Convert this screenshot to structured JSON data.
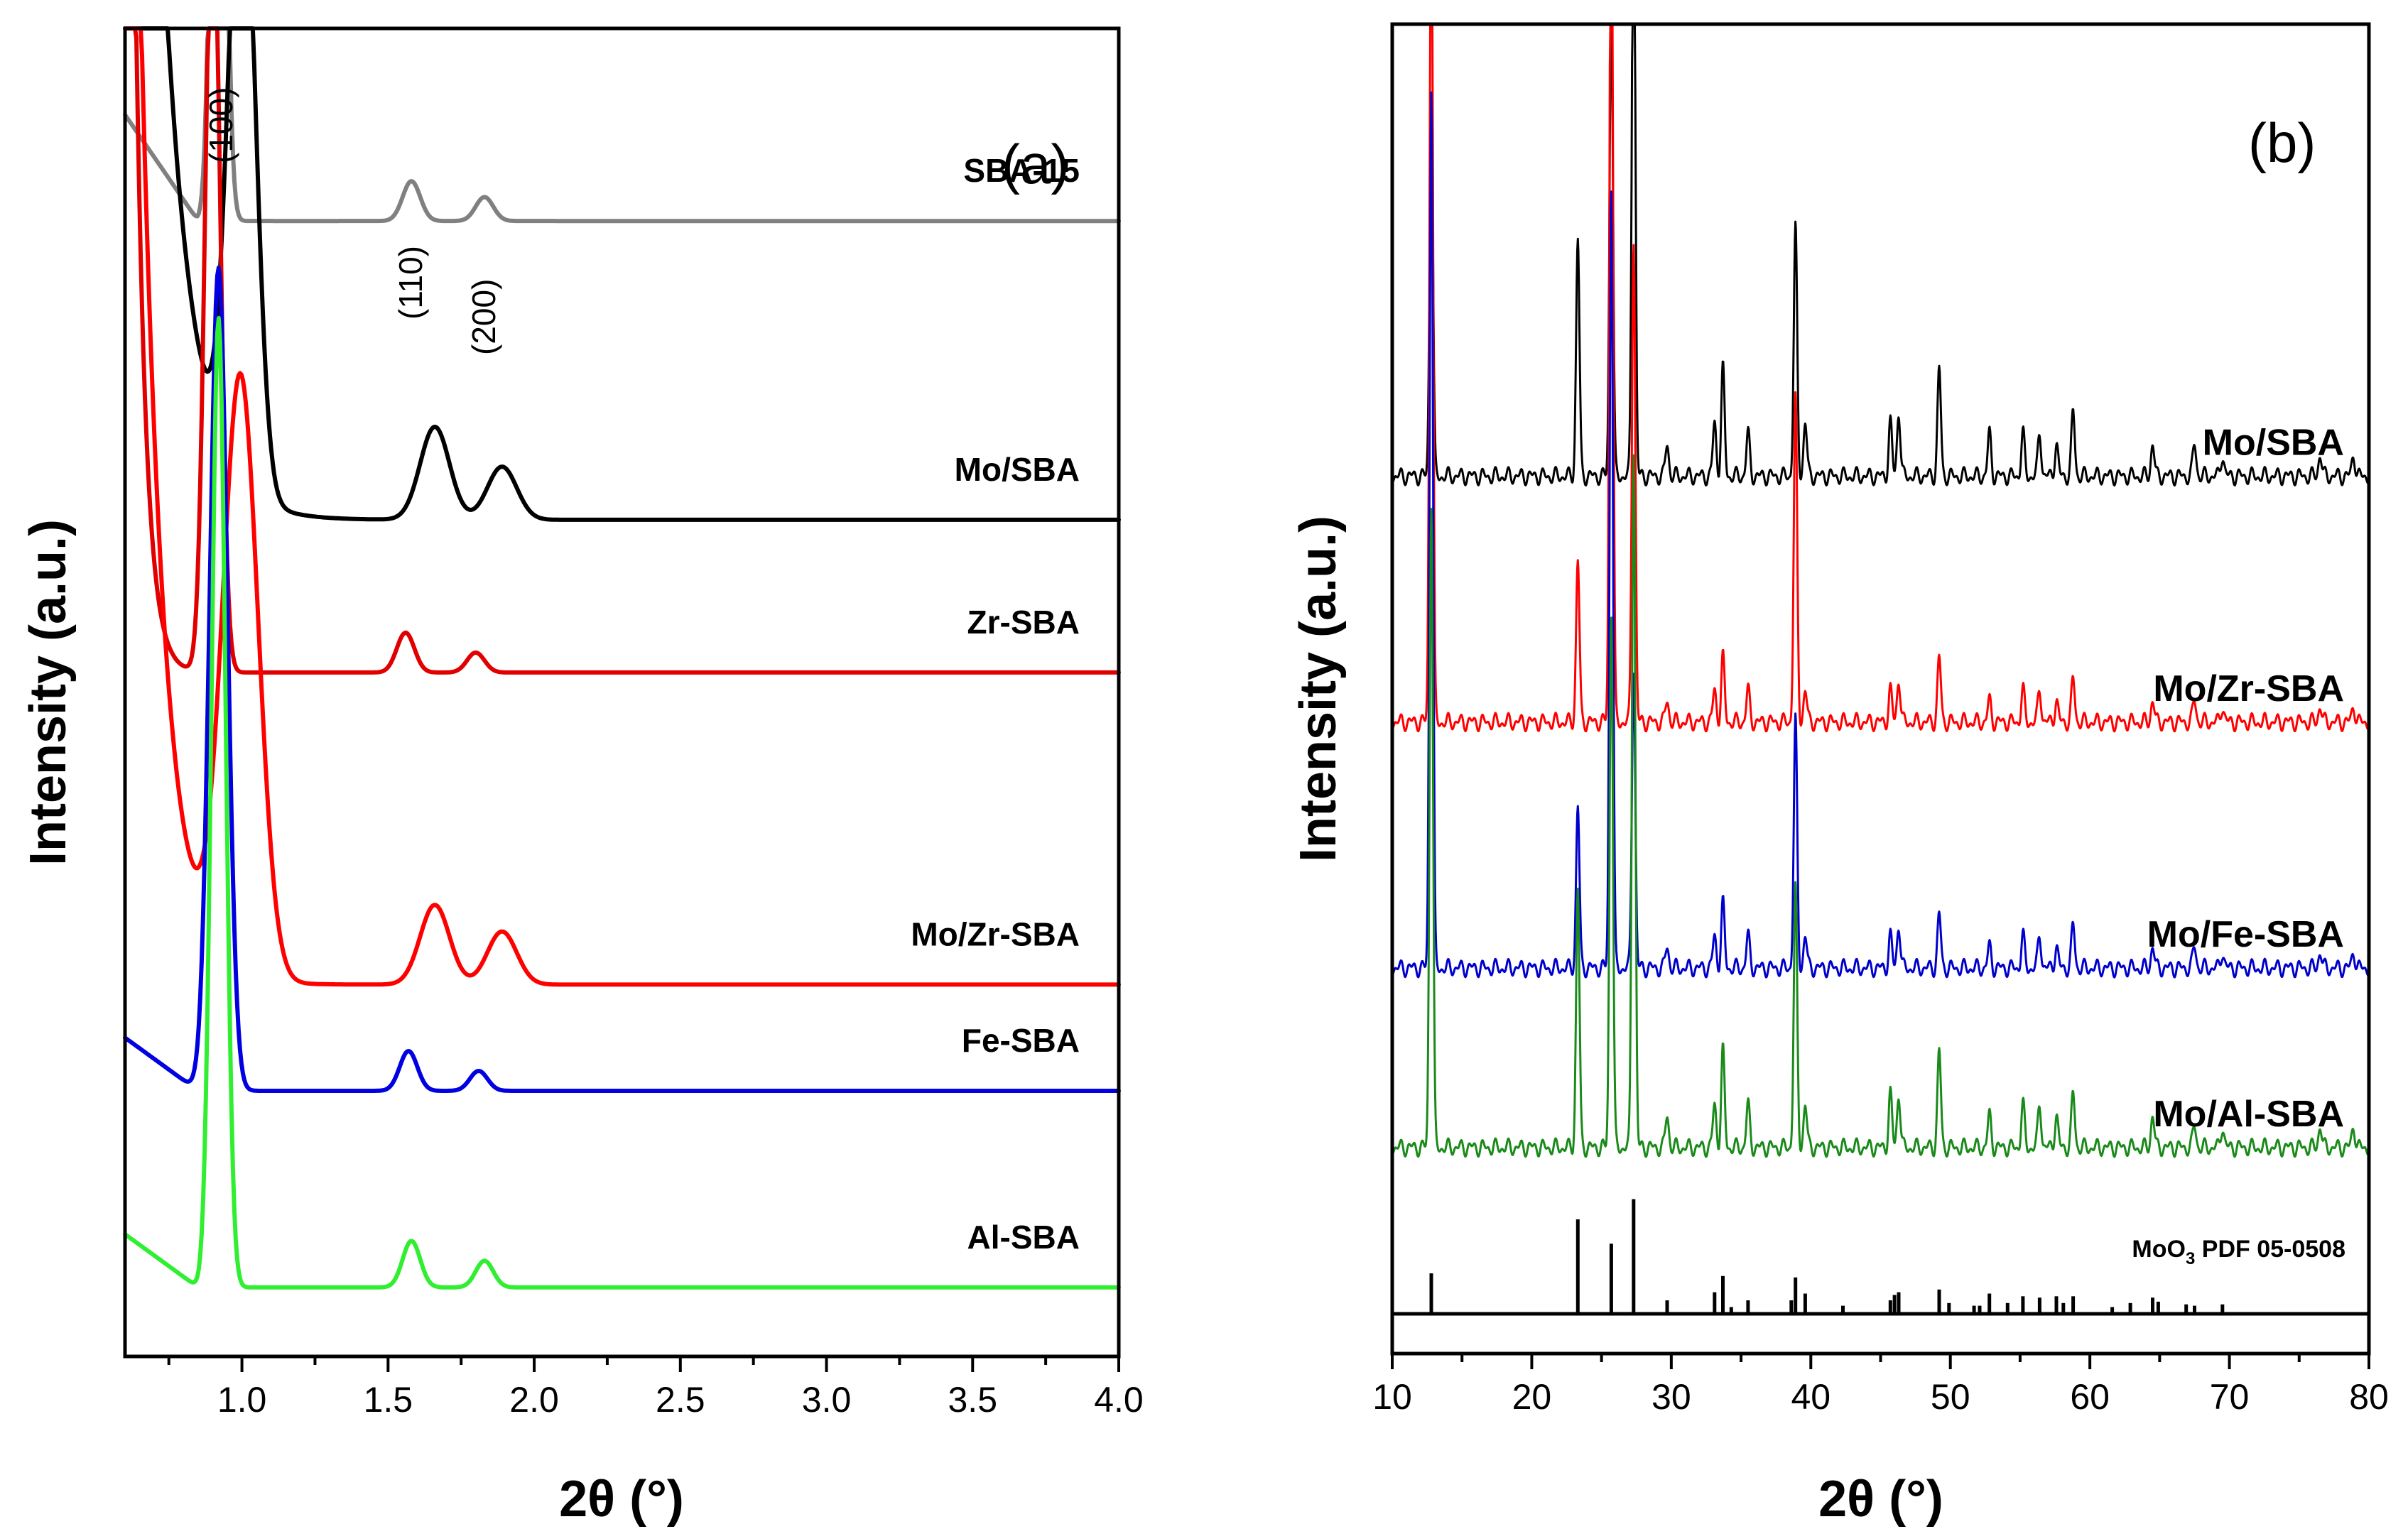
{
  "chart_data": [
    {
      "type": "line",
      "panel": "(a)",
      "xlabel": "2θ (°)",
      "ylabel": "Intensity (a.u.)",
      "xlim": [
        0.6,
        4.0
      ],
      "x_ticks": [
        "1.0",
        "1.5",
        "2.0",
        "2.5",
        "3.0",
        "3.5",
        "4.0"
      ],
      "peak_labels": [
        {
          "text": "(100)",
          "x": 0.93
        },
        {
          "text": "(110)",
          "x": 1.58
        },
        {
          "text": "(200)",
          "x": 1.83
        }
      ],
      "series": [
        {
          "name": "SBA-15",
          "color": "#808080",
          "baseline": 0.855,
          "tail": 0.08,
          "peaks": [
            [
              0.92,
              0.62,
              0.022
            ],
            [
              1.58,
              0.03,
              0.03
            ],
            [
              1.83,
              0.018,
              0.03
            ]
          ]
        },
        {
          "name": "Mo/SBA",
          "color": "#000000",
          "baseline": 0.63,
          "tail": 1.6,
          "tail_decay": 0.1,
          "peaks": [
            [
              1.0,
              0.5,
              0.045
            ],
            [
              1.66,
              0.07,
              0.05
            ],
            [
              1.89,
              0.04,
              0.05
            ]
          ]
        },
        {
          "name": "Zr-SBA",
          "color": "#e00000",
          "baseline": 0.515,
          "tail": 1.45,
          "tail_decay": 0.035,
          "peaks": [
            [
              0.9,
              0.6,
              0.025
            ],
            [
              1.56,
              0.03,
              0.03
            ],
            [
              1.8,
              0.015,
              0.03
            ]
          ]
        },
        {
          "name": "Mo/Zr-SBA",
          "color": "#ff0000",
          "baseline": 0.28,
          "tail": 1.45,
          "tail_decay": 0.08,
          "peaks": [
            [
              0.995,
              0.45,
              0.06
            ],
            [
              1.66,
              0.06,
              0.05
            ],
            [
              1.89,
              0.04,
              0.05
            ]
          ]
        },
        {
          "name": "Fe-SBA",
          "color": "#0000e0",
          "baseline": 0.2,
          "tail": 0.04,
          "peaks": [
            [
              0.92,
              0.62,
              0.03
            ],
            [
              1.57,
              0.03,
              0.03
            ],
            [
              1.81,
              0.015,
              0.03
            ]
          ]
        },
        {
          "name": "Al-SBA",
          "color": "#30ee30",
          "baseline": 0.052,
          "tail": 0.04,
          "peaks": [
            [
              0.92,
              0.73,
              0.024
            ],
            [
              1.58,
              0.035,
              0.03
            ],
            [
              1.83,
              0.02,
              0.03
            ]
          ]
        }
      ]
    },
    {
      "type": "line",
      "panel": "(b)",
      "xlabel": "2θ (°)",
      "ylabel": "Intensity (a.u.)",
      "xlim": [
        10,
        80
      ],
      "x_ticks": [
        "10",
        "20",
        "30",
        "40",
        "50",
        "60",
        "70",
        "80"
      ],
      "series": [
        {
          "name": "Mo/SBA",
          "color": "#000000",
          "baseline": 0.66,
          "scale": 0.27,
          "peaks": [
            [
              12.8,
              0.35
            ],
            [
              23.3,
              0.22
            ],
            [
              25.7,
              0.45
            ],
            [
              27.3,
              0.6
            ],
            [
              29.7,
              0.03
            ],
            [
              33.1,
              0.05
            ],
            [
              33.7,
              0.1
            ],
            [
              35.5,
              0.04
            ],
            [
              38.9,
              0.23
            ],
            [
              39.6,
              0.05
            ],
            [
              45.7,
              0.05
            ],
            [
              46.3,
              0.06
            ],
            [
              49.2,
              0.1
            ],
            [
              52.8,
              0.04
            ],
            [
              55.2,
              0.04
            ],
            [
              56.4,
              0.04
            ],
            [
              57.6,
              0.03
            ],
            [
              58.8,
              0.06
            ],
            [
              64.5,
              0.03
            ],
            [
              67.5,
              0.03
            ],
            [
              69.5,
              0.02
            ],
            [
              76.5,
              0.02
            ],
            [
              78.9,
              0.02
            ]
          ]
        },
        {
          "name": "Mo/Zr-SBA",
          "color": "#ff0000",
          "baseline": 0.475,
          "scale": 0.27,
          "peaks": [
            [
              12.8,
              0.82
            ],
            [
              23.3,
              0.15
            ],
            [
              25.7,
              0.9
            ],
            [
              27.3,
              0.45
            ],
            [
              29.7,
              0.02
            ],
            [
              33.1,
              0.03
            ],
            [
              33.7,
              0.06
            ],
            [
              35.5,
              0.03
            ],
            [
              38.9,
              0.3
            ],
            [
              39.6,
              0.03
            ],
            [
              45.7,
              0.03
            ],
            [
              46.3,
              0.04
            ],
            [
              49.2,
              0.06
            ],
            [
              52.8,
              0.02
            ],
            [
              55.2,
              0.03
            ],
            [
              56.4,
              0.03
            ],
            [
              57.6,
              0.02
            ],
            [
              58.8,
              0.04
            ],
            [
              64.5,
              0.02
            ],
            [
              67.5,
              0.02
            ],
            [
              69.5,
              0.015
            ],
            [
              76.5,
              0.015
            ],
            [
              78.9,
              0.015
            ]
          ]
        },
        {
          "name": "Mo/Fe-SBA",
          "color": "#0000cc",
          "baseline": 0.29,
          "scale": 0.27,
          "peaks": [
            [
              12.8,
              0.82
            ],
            [
              23.3,
              0.15
            ],
            [
              25.7,
              0.73
            ],
            [
              27.3,
              0.28
            ],
            [
              29.7,
              0.02
            ],
            [
              33.1,
              0.03
            ],
            [
              33.7,
              0.06
            ],
            [
              35.5,
              0.03
            ],
            [
              38.9,
              0.23
            ],
            [
              39.6,
              0.03
            ],
            [
              45.7,
              0.03
            ],
            [
              46.3,
              0.04
            ],
            [
              49.2,
              0.05
            ],
            [
              52.8,
              0.02
            ],
            [
              55.2,
              0.03
            ],
            [
              56.4,
              0.03
            ],
            [
              57.6,
              0.02
            ],
            [
              58.8,
              0.04
            ],
            [
              64.5,
              0.02
            ],
            [
              67.5,
              0.02
            ],
            [
              69.5,
              0.015
            ],
            [
              76.5,
              0.015
            ],
            [
              78.9,
              0.015
            ]
          ]
        },
        {
          "name": "Mo/Al-SBA",
          "color": "#1a8a1a",
          "baseline": 0.155,
          "scale": 0.27,
          "peaks": [
            [
              12.8,
              0.6
            ],
            [
              23.3,
              0.24
            ],
            [
              25.7,
              0.5
            ],
            [
              27.3,
              0.65
            ],
            [
              29.7,
              0.03
            ],
            [
              33.1,
              0.04
            ],
            [
              33.7,
              0.09
            ],
            [
              35.5,
              0.04
            ],
            [
              38.9,
              0.24
            ],
            [
              39.6,
              0.04
            ],
            [
              45.7,
              0.05
            ],
            [
              46.3,
              0.05
            ],
            [
              49.2,
              0.09
            ],
            [
              52.8,
              0.03
            ],
            [
              55.2,
              0.04
            ],
            [
              56.4,
              0.04
            ],
            [
              57.6,
              0.03
            ],
            [
              58.8,
              0.05
            ],
            [
              64.5,
              0.03
            ],
            [
              67.5,
              0.02
            ],
            [
              69.5,
              0.02
            ],
            [
              76.5,
              0.02
            ],
            [
              78.9,
              0.02
            ]
          ]
        }
      ],
      "reference": {
        "name": "MoO3 PDF 05-0508",
        "label_main": "MoO",
        "label_sub": "3",
        "label_tail": " PDF 05-0508",
        "color": "#000000",
        "lines": [
          [
            12.8,
            0.3
          ],
          [
            23.3,
            0.7
          ],
          [
            25.7,
            0.52
          ],
          [
            27.3,
            0.85
          ],
          [
            29.7,
            0.1
          ],
          [
            33.1,
            0.16
          ],
          [
            33.7,
            0.28
          ],
          [
            34.3,
            0.05
          ],
          [
            35.5,
            0.1
          ],
          [
            38.6,
            0.1
          ],
          [
            38.9,
            0.27
          ],
          [
            39.6,
            0.15
          ],
          [
            42.3,
            0.06
          ],
          [
            45.7,
            0.1
          ],
          [
            46.0,
            0.14
          ],
          [
            46.3,
            0.16
          ],
          [
            49.2,
            0.18
          ],
          [
            49.9,
            0.08
          ],
          [
            51.7,
            0.06
          ],
          [
            52.1,
            0.06
          ],
          [
            52.8,
            0.15
          ],
          [
            54.1,
            0.08
          ],
          [
            55.2,
            0.13
          ],
          [
            56.4,
            0.12
          ],
          [
            57.6,
            0.13
          ],
          [
            58.1,
            0.08
          ],
          [
            58.8,
            0.13
          ],
          [
            61.6,
            0.05
          ],
          [
            62.9,
            0.08
          ],
          [
            64.5,
            0.12
          ],
          [
            64.9,
            0.09
          ],
          [
            66.9,
            0.07
          ],
          [
            67.5,
            0.06
          ],
          [
            69.5,
            0.07
          ]
        ]
      }
    }
  ]
}
